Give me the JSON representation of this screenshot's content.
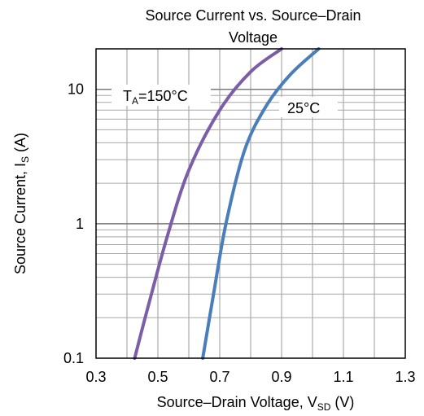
{
  "chart_data": {
    "type": "line",
    "title": "Source Current vs. Source–Drain Voltage",
    "xlabel": {
      "main": "Source–Drain Voltage, V",
      "sub": "SD",
      "unit": " (V)"
    },
    "ylabel": {
      "main": "Source Current, I",
      "sub": "S",
      "unit": " (A)"
    },
    "xlim": [
      0.3,
      1.3
    ],
    "ylim": [
      0.1,
      20
    ],
    "yscale": "log",
    "grid": true,
    "x_ticks": [
      "0.3",
      "0.5",
      "0.7",
      "0.9",
      "1.1",
      "1.3"
    ],
    "y_ticks": [
      "0.1",
      "1",
      "10"
    ],
    "series": [
      {
        "name": "TA=150°C",
        "label": {
          "prefix": "T",
          "sub": "A",
          "suffix": "=150°C"
        },
        "color": "#7b5ea7",
        "points": [
          [
            0.425,
            0.1
          ],
          [
            0.47,
            0.25
          ],
          [
            0.53,
            0.8
          ],
          [
            0.6,
            2.5
          ],
          [
            0.7,
            7.0
          ],
          [
            0.8,
            13.5
          ],
          [
            0.9,
            20
          ]
        ]
      },
      {
        "name": "25°C",
        "label": {
          "prefix": "25°C",
          "sub": "",
          "suffix": ""
        },
        "color": "#4a7ebb",
        "points": [
          [
            0.645,
            0.1
          ],
          [
            0.68,
            0.3
          ],
          [
            0.72,
            1.0
          ],
          [
            0.78,
            3.5
          ],
          [
            0.85,
            7.5
          ],
          [
            0.93,
            13.0
          ],
          [
            1.02,
            20
          ]
        ]
      }
    ]
  }
}
